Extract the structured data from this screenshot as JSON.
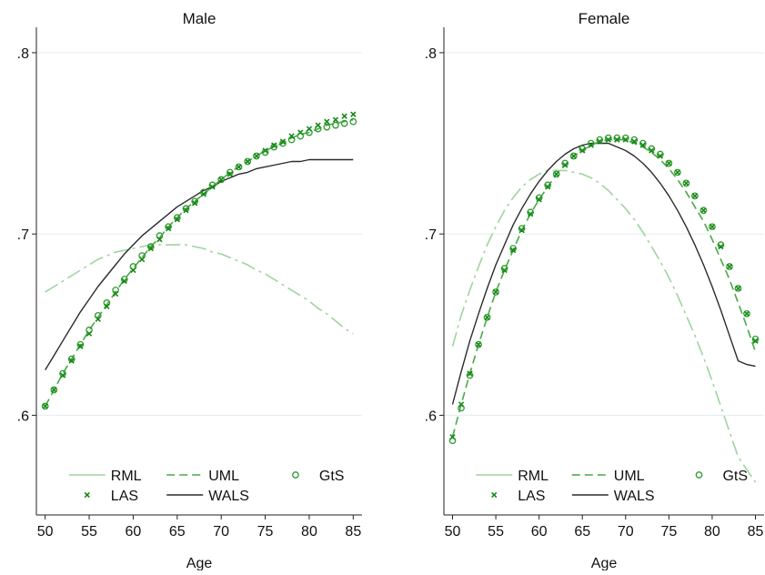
{
  "chart_data": [
    {
      "type": "line",
      "title": "Male",
      "xlabel": "Age",
      "ylabel": "",
      "xlim": [
        49,
        86
      ],
      "ylim": [
        0.545,
        0.81
      ],
      "x_ticks": [
        50,
        55,
        60,
        65,
        70,
        75,
        80,
        85
      ],
      "x_tick_labels": [
        "50",
        "55",
        "60",
        "65",
        "70",
        "75",
        "80",
        "85"
      ],
      "y_ticks": [
        0.6,
        0.7,
        0.8
      ],
      "y_tick_labels": [
        ".6",
        ".7",
        ".8"
      ],
      "grid": "horizontal",
      "legend_position": "bottom",
      "x": [
        50,
        51,
        52,
        53,
        54,
        55,
        56,
        57,
        58,
        59,
        60,
        61,
        62,
        63,
        64,
        65,
        66,
        67,
        68,
        69,
        70,
        71,
        72,
        73,
        74,
        75,
        76,
        77,
        78,
        79,
        80,
        81,
        82,
        83,
        84,
        85
      ],
      "series": [
        {
          "name": "RML",
          "style": "longdash-dot",
          "color": "#9fd49f",
          "values": [
            0.668,
            0.671,
            0.674,
            0.677,
            0.68,
            0.683,
            0.686,
            0.688,
            0.69,
            0.691,
            0.692,
            0.693,
            0.694,
            0.694,
            0.694,
            0.694,
            0.694,
            0.693,
            0.692,
            0.69,
            0.689,
            0.687,
            0.685,
            0.683,
            0.68,
            0.678,
            0.675,
            0.672,
            0.669,
            0.666,
            0.663,
            0.659,
            0.656,
            0.652,
            0.648,
            0.645
          ]
        },
        {
          "name": "UML",
          "style": "dash",
          "color": "#4aa84a",
          "values": [
            0.605,
            0.614,
            0.623,
            0.631,
            0.639,
            0.647,
            0.654,
            0.661,
            0.668,
            0.675,
            0.681,
            0.687,
            0.693,
            0.698,
            0.704,
            0.709,
            0.714,
            0.718,
            0.722,
            0.726,
            0.73,
            0.734,
            0.737,
            0.74,
            0.743,
            0.746,
            0.748,
            0.75,
            0.753,
            0.755,
            0.756,
            0.758,
            0.76,
            0.761,
            0.762,
            0.763
          ]
        },
        {
          "name": "LAS",
          "style": "x-marker",
          "color": "#138a13",
          "values": [
            0.605,
            0.614,
            0.622,
            0.63,
            0.638,
            0.645,
            0.653,
            0.66,
            0.667,
            0.674,
            0.68,
            0.686,
            0.692,
            0.697,
            0.703,
            0.708,
            0.713,
            0.717,
            0.722,
            0.726,
            0.73,
            0.733,
            0.737,
            0.74,
            0.743,
            0.746,
            0.749,
            0.751,
            0.754,
            0.756,
            0.758,
            0.76,
            0.762,
            0.763,
            0.765,
            0.766
          ]
        },
        {
          "name": "WALS",
          "style": "solid",
          "color": "#2b2b2b",
          "values": [
            0.625,
            0.633,
            0.641,
            0.649,
            0.657,
            0.664,
            0.671,
            0.677,
            0.683,
            0.689,
            0.694,
            0.699,
            0.703,
            0.707,
            0.711,
            0.715,
            0.718,
            0.721,
            0.724,
            0.726,
            0.729,
            0.731,
            0.733,
            0.734,
            0.736,
            0.737,
            0.738,
            0.739,
            0.74,
            0.74,
            0.741,
            0.741,
            0.741,
            0.741,
            0.741,
            0.741
          ]
        },
        {
          "name": "GtS",
          "style": "circle-marker",
          "color": "#2f9a2f",
          "values": [
            0.605,
            0.614,
            0.623,
            0.631,
            0.639,
            0.647,
            0.655,
            0.662,
            0.669,
            0.675,
            0.682,
            0.688,
            0.693,
            0.699,
            0.704,
            0.709,
            0.714,
            0.718,
            0.723,
            0.727,
            0.73,
            0.734,
            0.737,
            0.74,
            0.743,
            0.745,
            0.748,
            0.75,
            0.752,
            0.754,
            0.756,
            0.758,
            0.759,
            0.76,
            0.761,
            0.762
          ]
        }
      ]
    },
    {
      "type": "line",
      "title": "Female",
      "xlabel": "Age",
      "ylabel": "",
      "xlim": [
        49,
        86
      ],
      "ylim": [
        0.545,
        0.81
      ],
      "x_ticks": [
        50,
        55,
        60,
        65,
        70,
        75,
        80,
        85
      ],
      "x_tick_labels": [
        "50",
        "55",
        "60",
        "65",
        "70",
        "75",
        "80",
        "85"
      ],
      "y_ticks": [
        0.6,
        0.7,
        0.8
      ],
      "y_tick_labels": [
        ".6",
        ".7",
        ".8"
      ],
      "grid": "horizontal",
      "legend_position": "bottom",
      "x": [
        50,
        51,
        52,
        53,
        54,
        55,
        56,
        57,
        58,
        59,
        60,
        61,
        62,
        63,
        64,
        65,
        66,
        67,
        68,
        69,
        70,
        71,
        72,
        73,
        74,
        75,
        76,
        77,
        78,
        79,
        80,
        81,
        82,
        83,
        84,
        85
      ],
      "series": [
        {
          "name": "RML",
          "style": "longdash-dot",
          "color": "#9fd49f",
          "values": [
            0.638,
            0.655,
            0.669,
            0.682,
            0.694,
            0.704,
            0.713,
            0.72,
            0.726,
            0.73,
            0.733,
            0.735,
            0.735,
            0.735,
            0.734,
            0.733,
            0.731,
            0.728,
            0.724,
            0.719,
            0.714,
            0.708,
            0.701,
            0.693,
            0.685,
            0.676,
            0.666,
            0.655,
            0.644,
            0.632,
            0.619,
            0.605,
            0.591,
            0.577,
            0.57,
            0.563
          ]
        },
        {
          "name": "UML",
          "style": "dash",
          "color": "#4aa84a",
          "values": [
            0.588,
            0.606,
            0.623,
            0.639,
            0.654,
            0.668,
            0.68,
            0.691,
            0.702,
            0.711,
            0.719,
            0.726,
            0.733,
            0.738,
            0.743,
            0.746,
            0.749,
            0.751,
            0.752,
            0.752,
            0.752,
            0.75,
            0.748,
            0.745,
            0.741,
            0.736,
            0.73,
            0.723,
            0.715,
            0.707,
            0.697,
            0.686,
            0.675,
            0.662,
            0.649,
            0.635
          ]
        },
        {
          "name": "LAS",
          "style": "x-marker",
          "color": "#138a13",
          "values": [
            0.588,
            0.606,
            0.623,
            0.639,
            0.654,
            0.668,
            0.68,
            0.691,
            0.702,
            0.711,
            0.719,
            0.726,
            0.733,
            0.738,
            0.743,
            0.746,
            0.749,
            0.751,
            0.752,
            0.752,
            0.752,
            0.751,
            0.749,
            0.746,
            0.743,
            0.739,
            0.734,
            0.728,
            0.721,
            0.713,
            0.704,
            0.693,
            0.682,
            0.67,
            0.656,
            0.641
          ]
        },
        {
          "name": "WALS",
          "style": "solid",
          "color": "#2b2b2b",
          "values": [
            0.606,
            0.624,
            0.641,
            0.656,
            0.67,
            0.683,
            0.694,
            0.705,
            0.714,
            0.722,
            0.729,
            0.735,
            0.74,
            0.744,
            0.747,
            0.749,
            0.75,
            0.75,
            0.75,
            0.748,
            0.746,
            0.743,
            0.739,
            0.734,
            0.728,
            0.721,
            0.713,
            0.704,
            0.694,
            0.683,
            0.671,
            0.658,
            0.644,
            0.63,
            0.628,
            0.627
          ]
        },
        {
          "name": "GtS",
          "style": "circle-marker",
          "color": "#2f9a2f",
          "values": [
            0.586,
            0.604,
            0.622,
            0.639,
            0.654,
            0.668,
            0.681,
            0.692,
            0.703,
            0.712,
            0.72,
            0.727,
            0.733,
            0.739,
            0.743,
            0.747,
            0.75,
            0.752,
            0.753,
            0.753,
            0.753,
            0.752,
            0.75,
            0.747,
            0.744,
            0.739,
            0.734,
            0.728,
            0.721,
            0.713,
            0.704,
            0.694,
            0.682,
            0.67,
            0.656,
            0.642
          ]
        }
      ]
    }
  ]
}
